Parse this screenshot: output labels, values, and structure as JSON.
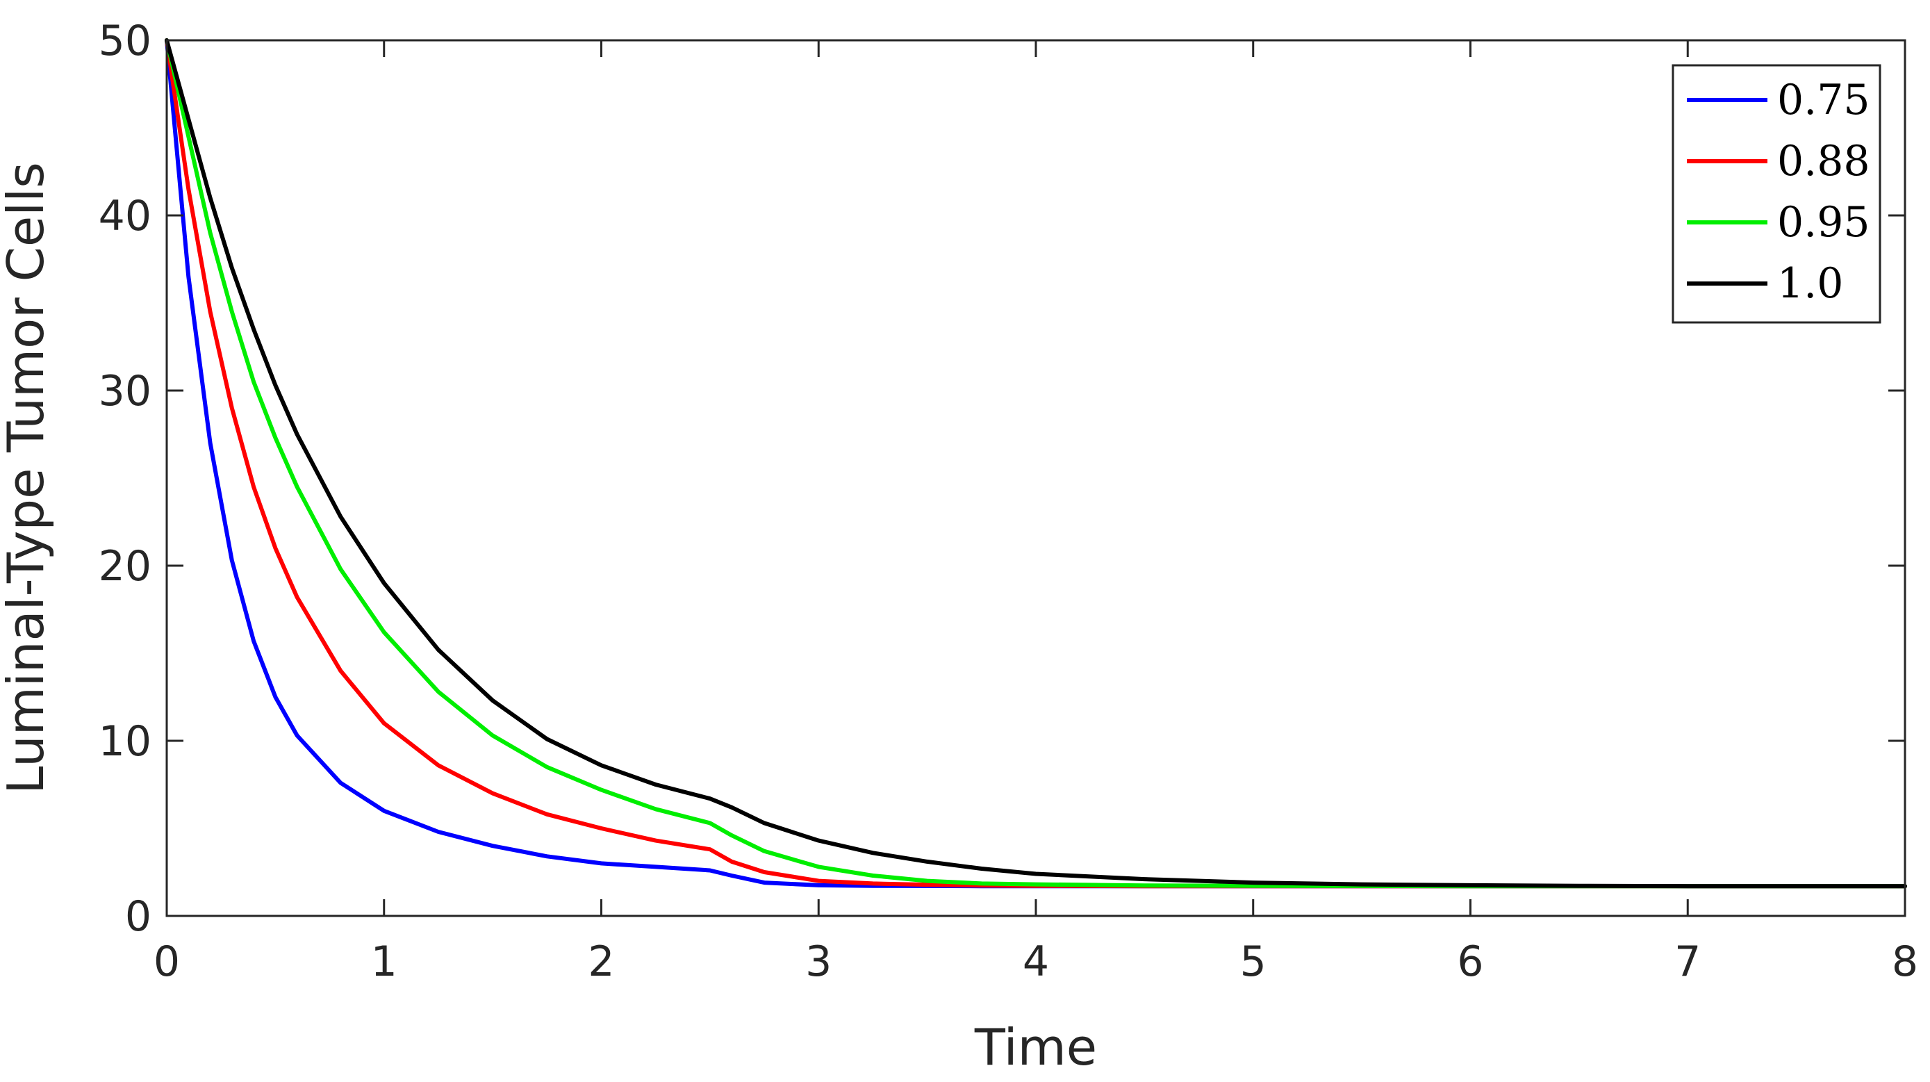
{
  "chart_data": {
    "type": "line",
    "title": "",
    "xlabel": "Time",
    "ylabel": "Luminal-Type Tumor Cells",
    "xlim": [
      0,
      8
    ],
    "ylim": [
      0,
      50
    ],
    "xticks": [
      0,
      1,
      2,
      3,
      4,
      5,
      6,
      7,
      8
    ],
    "yticks": [
      0,
      10,
      20,
      30,
      40,
      50
    ],
    "grid": false,
    "legend_position": "top-right",
    "x": [
      0,
      0.1,
      0.2,
      0.3,
      0.4,
      0.5,
      0.6,
      0.8,
      1.0,
      1.25,
      1.5,
      1.75,
      2.0,
      2.25,
      2.5,
      2.6,
      2.75,
      3.0,
      3.25,
      3.5,
      3.75,
      4.0,
      4.5,
      5.0,
      5.5,
      6.0,
      6.5,
      7.0,
      7.5,
      8.0
    ],
    "series": [
      {
        "name": "0.75",
        "color": "#0000ff",
        "values": [
          50,
          36.5,
          27.0,
          20.3,
          15.7,
          12.5,
          10.3,
          7.6,
          6.0,
          4.8,
          4.0,
          3.4,
          3.0,
          2.8,
          2.6,
          2.3,
          1.9,
          1.75,
          1.72,
          1.71,
          1.7,
          1.7,
          1.7,
          1.7,
          1.7,
          1.7,
          1.7,
          1.7,
          1.7,
          1.7
        ]
      },
      {
        "name": "0.88",
        "color": "#ff0000",
        "values": [
          50,
          41.5,
          34.5,
          29.0,
          24.5,
          21.0,
          18.2,
          14.0,
          11.0,
          8.6,
          7.0,
          5.8,
          5.0,
          4.3,
          3.8,
          3.1,
          2.5,
          2.0,
          1.85,
          1.78,
          1.74,
          1.72,
          1.7,
          1.7,
          1.7,
          1.7,
          1.7,
          1.7,
          1.7,
          1.7
        ]
      },
      {
        "name": "0.95",
        "color": "#00ee00",
        "values": [
          50,
          44.5,
          39.0,
          34.5,
          30.5,
          27.3,
          24.5,
          19.8,
          16.2,
          12.8,
          10.3,
          8.5,
          7.2,
          6.1,
          5.3,
          4.6,
          3.7,
          2.8,
          2.3,
          2.0,
          1.85,
          1.8,
          1.74,
          1.72,
          1.71,
          1.7,
          1.7,
          1.7,
          1.7,
          1.7
        ]
      },
      {
        "name": "1.0",
        "color": "#000000",
        "values": [
          50,
          45.5,
          41.0,
          37.0,
          33.5,
          30.3,
          27.5,
          22.8,
          19.0,
          15.2,
          12.3,
          10.1,
          8.6,
          7.5,
          6.7,
          6.2,
          5.3,
          4.3,
          3.6,
          3.1,
          2.7,
          2.4,
          2.1,
          1.9,
          1.8,
          1.75,
          1.72,
          1.7,
          1.7,
          1.7
        ]
      }
    ]
  }
}
